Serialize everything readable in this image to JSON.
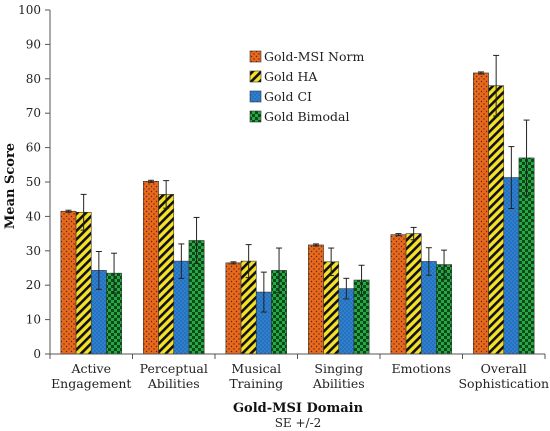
{
  "chart_data": {
    "type": "bar",
    "ylabel": "Mean Score",
    "xlabel": "Gold-MSI Domain",
    "xlabel_sub": "SE +/-2",
    "ylim": [
      0,
      100
    ],
    "yticks": [
      0,
      10,
      20,
      30,
      40,
      50,
      60,
      70,
      80,
      90,
      100
    ],
    "grid": false,
    "legend_position": "top-center",
    "categories": [
      [
        "Active",
        "Engagement"
      ],
      [
        "Perceptual",
        "Abilities"
      ],
      [
        "Musical",
        "Training"
      ],
      [
        "Singing",
        "Abilities"
      ],
      [
        "Emotions"
      ],
      [
        "Overall",
        "Sophistication"
      ]
    ],
    "series": [
      {
        "name": "Gold-MSI Norm",
        "color": "#e8681e",
        "pattern": "dots",
        "values": [
          41.5,
          50.2,
          26.5,
          31.7,
          34.7,
          81.7
        ],
        "error": [
          0.3,
          0.3,
          0.3,
          0.3,
          0.3,
          0.3
        ]
      },
      {
        "name": "Gold HA",
        "color": "#f5e12a",
        "pattern": "stripes",
        "values": [
          41.2,
          46.4,
          27.0,
          26.8,
          35.0,
          78.0
        ],
        "error": [
          5.2,
          4.0,
          4.8,
          4.0,
          1.8,
          8.8
        ]
      },
      {
        "name": "Gold CI",
        "color": "#2e7fd0",
        "pattern": "fine-dots",
        "values": [
          24.3,
          27.0,
          18.0,
          19.0,
          26.9,
          51.3
        ],
        "error": [
          5.5,
          5.0,
          5.8,
          3.0,
          4.0,
          9.0
        ]
      },
      {
        "name": "Gold Bimodal",
        "color": "#27a844",
        "pattern": "checker",
        "values": [
          23.5,
          33.0,
          24.3,
          21.5,
          26.0,
          57.0
        ],
        "error": [
          5.8,
          6.7,
          6.5,
          4.3,
          4.2,
          11.0
        ]
      }
    ]
  }
}
